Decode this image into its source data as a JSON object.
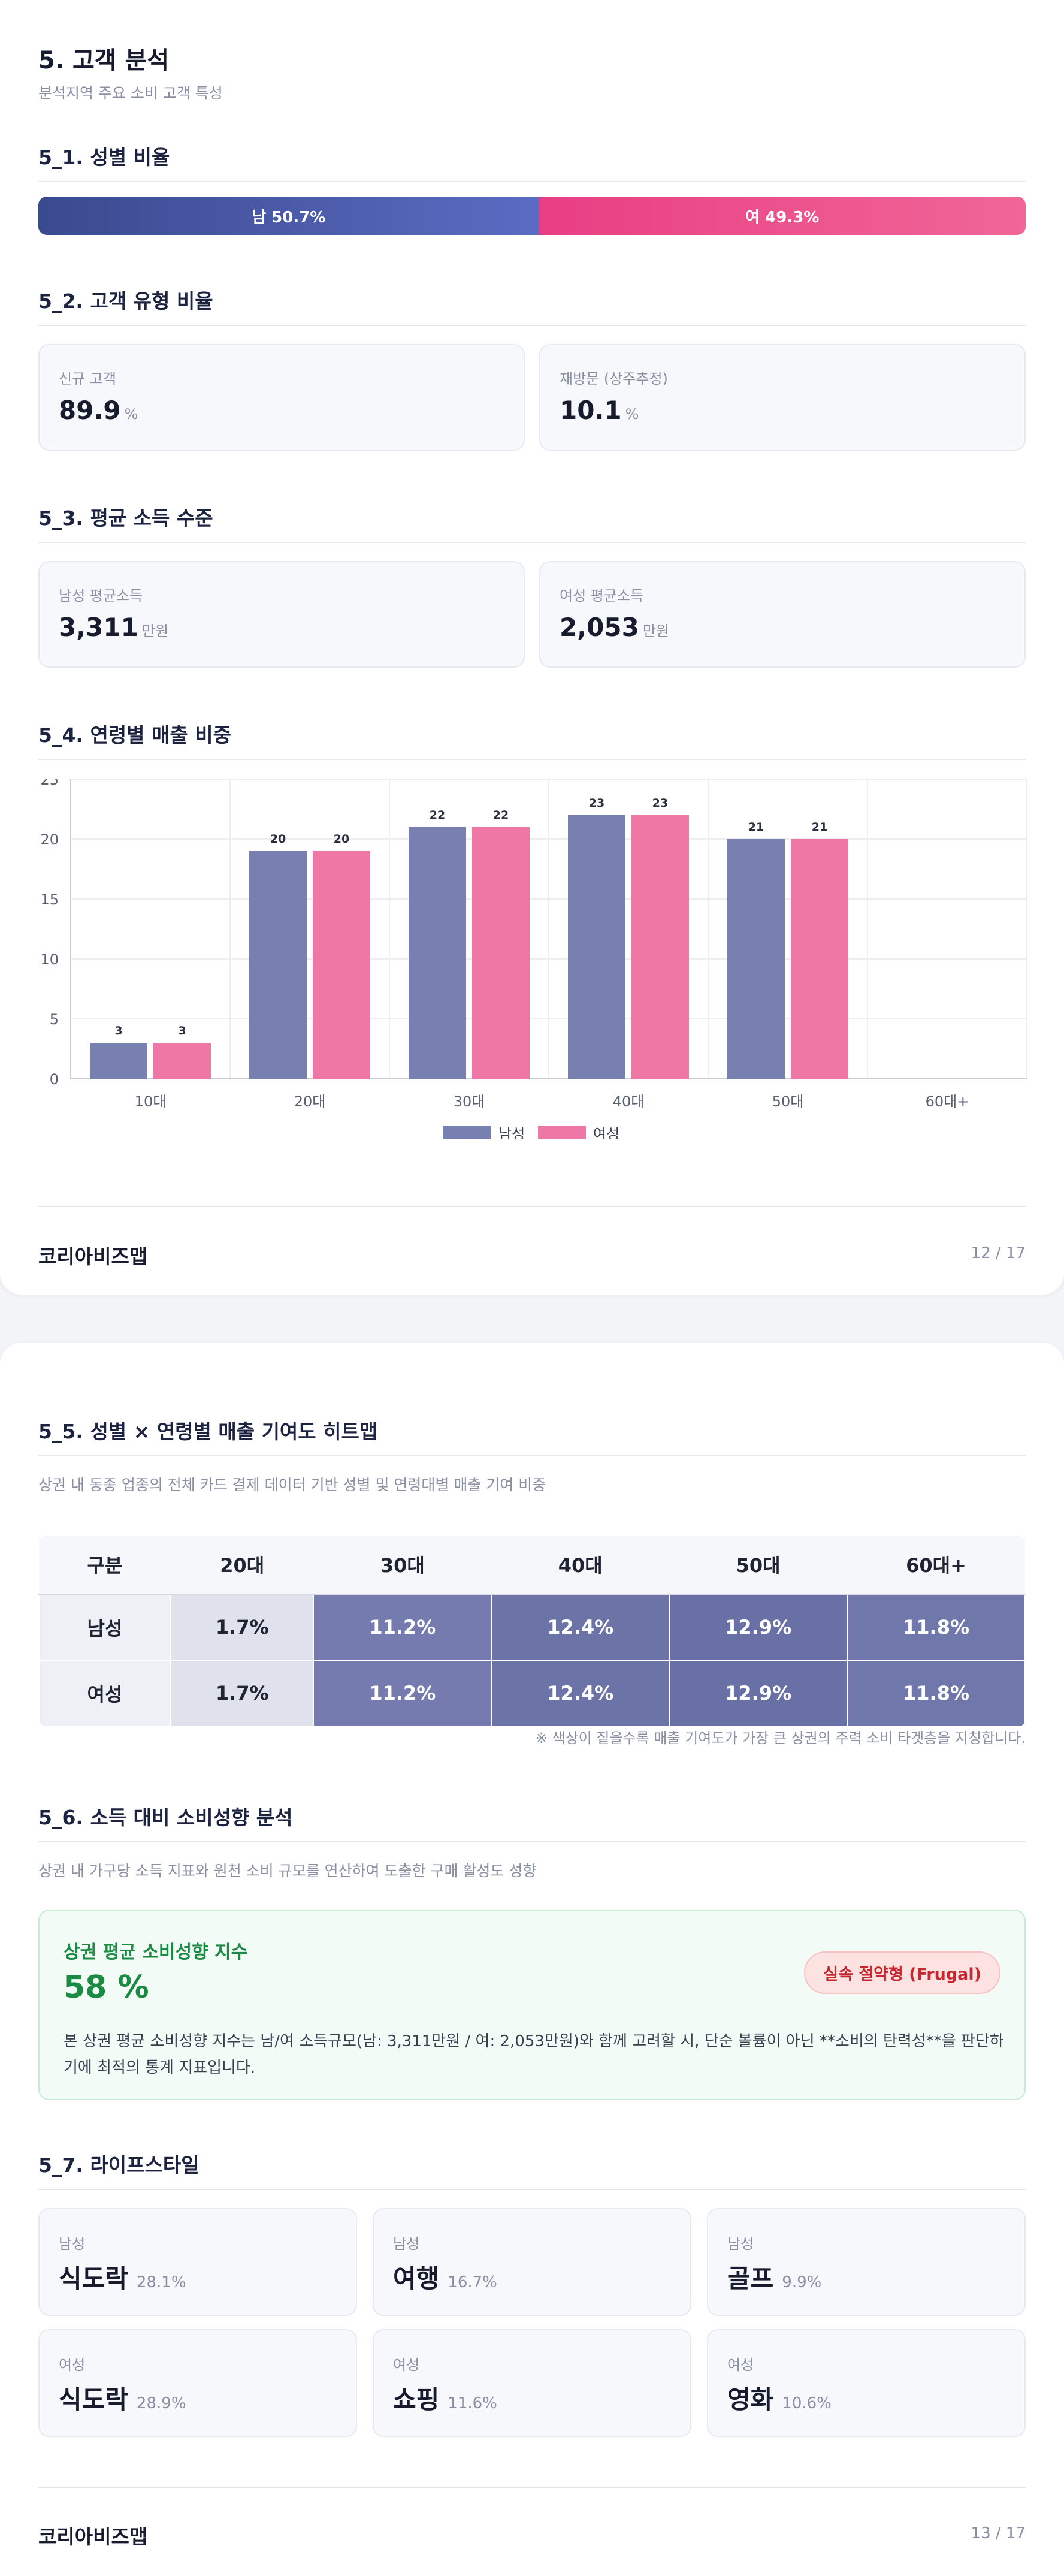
{
  "page1": {
    "title": "5. 고객 분석",
    "subtitle": "분석지역 주요 소비 고객 특성",
    "s1_title": "5_1. 성별 비율",
    "gender": {
      "male_label": "남 50.7%",
      "female_label": "여 49.3%",
      "male_pct": 50.7,
      "female_pct": 49.3
    },
    "s2_title": "5_2. 고객 유형 비율",
    "customer_types": [
      {
        "label": "신규 고객",
        "value": "89.9",
        "unit": "%"
      },
      {
        "label": "재방문 (상주추정)",
        "value": "10.1",
        "unit": "%"
      }
    ],
    "s3_title": "5_3. 평균 소득 수준",
    "incomes": [
      {
        "label": "남성 평균소득",
        "value": "3,311",
        "unit": "만원"
      },
      {
        "label": "여성 평균소득",
        "value": "2,053",
        "unit": "만원"
      }
    ],
    "s4_title": "5_4. 연령별 매출 비중",
    "footer_brand": "코리아비즈맵",
    "footer_page": "12 / 17"
  },
  "chart_data": {
    "type": "bar",
    "categories": [
      "10대",
      "20대",
      "30대",
      "40대",
      "50대",
      "60대+"
    ],
    "series": [
      {
        "name": "남성",
        "values": [
          3,
          20,
          22,
          23,
          21,
          null
        ],
        "bar_values": [
          3,
          19,
          21,
          22,
          20,
          null
        ],
        "color": "#7880b0"
      },
      {
        "name": "여성",
        "values": [
          3,
          20,
          22,
          23,
          21,
          null
        ],
        "bar_values": [
          3,
          19,
          21,
          22,
          20,
          null
        ],
        "color": "#ee77a6"
      }
    ],
    "ylim": [
      0,
      25
    ],
    "yticks": [
      0,
      5,
      10,
      15,
      20,
      25
    ],
    "grid": true,
    "legend": "bottom-center"
  },
  "page2": {
    "s5_title": "5_5. 성별 × 연령별 매출 기여도 히트맵",
    "s5_desc": "상권 내 동종 업종의 전체 카드 결제 데이터 기반 성별 및 연령대별 매출 기여 비중",
    "heatmap": {
      "headers": [
        "구분",
        "20대",
        "30대",
        "40대",
        "50대",
        "60대+"
      ],
      "rows": [
        {
          "label": "남성",
          "cells": [
            "1.7%",
            "11.2%",
            "12.4%",
            "12.9%",
            "11.8%"
          ],
          "values": [
            1.7,
            11.2,
            12.4,
            12.9,
            11.8
          ]
        },
        {
          "label": "여성",
          "cells": [
            "1.7%",
            "11.2%",
            "12.4%",
            "12.9%",
            "11.8%"
          ],
          "values": [
            1.7,
            11.2,
            12.4,
            12.9,
            11.8
          ]
        }
      ],
      "note": "※ 색상이 짙을수록 매출 기여도가 가장 큰 상권의 주력 소비 타겟층을 지칭합니다."
    },
    "s6_title": "5_6. 소득 대비 소비성향 분석",
    "s6_desc": "상권 내 가구당 소득 지표와 원천 소비 규모를 연산하여 도출한 구매 활성도 성향",
    "spend": {
      "title": "상권 평균 소비성향 지수",
      "value": "58 %",
      "badge": "실속 절약형 (Frugal)",
      "desc": "본 상권 평균 소비성향 지수는 남/여 소득규모(남: 3,311만원 / 여: 2,053만원)와 함께 고려할 시, 단순 볼륨이 아닌 **소비의 탄력성**을 판단하기에 최적의 통계 지표입니다."
    },
    "s7_title": "5_7. 라이프스타일",
    "lifestyle": [
      {
        "gender": "남성",
        "name": "식도락",
        "pct": "28.1%"
      },
      {
        "gender": "남성",
        "name": "여행",
        "pct": "16.7%"
      },
      {
        "gender": "남성",
        "name": "골프",
        "pct": "9.9%"
      },
      {
        "gender": "여성",
        "name": "식도락",
        "pct": "28.9%"
      },
      {
        "gender": "여성",
        "name": "쇼핑",
        "pct": "11.6%"
      },
      {
        "gender": "여성",
        "name": "영화",
        "pct": "10.6%"
      }
    ],
    "footer_brand": "코리아비즈맵",
    "footer_page": "13 / 17"
  }
}
